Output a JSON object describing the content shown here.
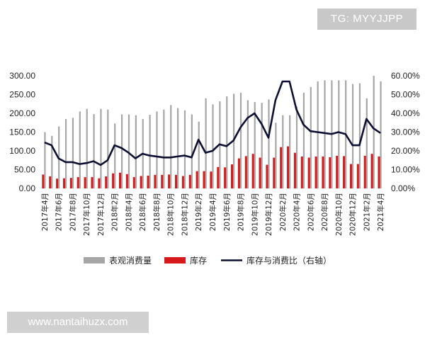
{
  "watermark": {
    "badge": "TG: MYYJJPP",
    "site": "www.nantaihuzx.com"
  },
  "colors": {
    "consumption": "#a6a6a6",
    "inventory": "#d7191c",
    "ratio": "#0d1033"
  },
  "chart_data": {
    "type": "bar",
    "x": [
      "2017年4月",
      "2017年5月",
      "2017年6月",
      "2017年7月",
      "2017年8月",
      "2017年9月",
      "2017年10月",
      "2017年11月",
      "2017年12月",
      "2018年1月",
      "2018年2月",
      "2018年3月",
      "2018年4月",
      "2018年5月",
      "2018年6月",
      "2018年7月",
      "2018年8月",
      "2018年9月",
      "2018年10月",
      "2018年11月",
      "2018年12月",
      "2019年1月",
      "2019年2月",
      "2019年3月",
      "2019年4月",
      "2019年5月",
      "2019年6月",
      "2019年7月",
      "2019年8月",
      "2019年9月",
      "2019年10月",
      "2019年11月",
      "2019年12月",
      "2020年1月",
      "2020年2月",
      "2020年3月",
      "2020年4月",
      "2020年5月",
      "2020年6月",
      "2020年7月",
      "2020年8月",
      "2020年9月",
      "2020年10月",
      "2020年11月",
      "2020年12月",
      "2021年1月",
      "2021年2月",
      "2021年3月",
      "2021年4月"
    ],
    "xtick_labels": [
      "2017年4月",
      "2017年6月",
      "2017年8月",
      "2017年10月",
      "2017年12月",
      "2018年2月",
      "2018年4月",
      "2018年6月",
      "2018年8月",
      "2018年10月",
      "2018年12月",
      "2019年2月",
      "2019年4月",
      "2019年6月",
      "2019年8月",
      "2019年10月",
      "2019年12月",
      "2020年2月",
      "2020年4月",
      "2020年6月",
      "2020年8月",
      "2020年10月",
      "2020年12月",
      "2021年2月",
      "2021年4月"
    ],
    "series": [
      {
        "name": "表观消费量",
        "type": "bar",
        "axis": "left",
        "values": [
          150,
          140,
          165,
          185,
          188,
          205,
          212,
          198,
          212,
          210,
          173,
          197,
          197,
          195,
          185,
          196,
          205,
          210,
          222,
          214,
          208,
          197,
          178,
          240,
          224,
          232,
          245,
          252,
          255,
          235,
          230,
          228,
          237,
          175,
          195,
          195,
          218,
          255,
          270,
          285,
          288,
          288,
          288,
          288,
          278,
          280,
          240,
          300,
          285
        ]
      },
      {
        "name": "库存",
        "type": "bar",
        "axis": "left",
        "values": [
          37,
          32,
          26,
          27,
          28,
          30,
          30,
          30,
          27,
          32,
          40,
          42,
          38,
          30,
          33,
          34,
          36,
          36,
          37,
          36,
          33,
          36,
          46,
          46,
          45,
          57,
          56,
          64,
          80,
          86,
          92,
          82,
          63,
          82,
          110,
          112,
          95,
          85,
          82,
          85,
          85,
          83,
          87,
          86,
          65,
          65,
          87,
          92,
          85
        ]
      },
      {
        "name": "库存与消费比（右轴）",
        "type": "line",
        "axis": "right",
        "values": [
          0.245,
          0.23,
          0.16,
          0.14,
          0.14,
          0.13,
          0.135,
          0.145,
          0.125,
          0.15,
          0.23,
          0.215,
          0.19,
          0.16,
          0.185,
          0.175,
          0.17,
          0.165,
          0.165,
          0.17,
          0.175,
          0.165,
          0.26,
          0.19,
          0.2,
          0.235,
          0.225,
          0.255,
          0.325,
          0.375,
          0.4,
          0.345,
          0.27,
          0.47,
          0.57,
          0.57,
          0.42,
          0.34,
          0.305,
          0.3,
          0.295,
          0.29,
          0.3,
          0.29,
          0.23,
          0.23,
          0.37,
          0.32,
          0.295
        ]
      }
    ],
    "y_left": {
      "ticks": [
        "0.00",
        "50.00",
        "100.00",
        "150.00",
        "200.00",
        "250.00",
        "300.00"
      ],
      "ylim": [
        0,
        300
      ]
    },
    "y_right": {
      "ticks": [
        "0.00%",
        "10.00%",
        "20.00%",
        "30.00%",
        "40.00%",
        "50.00%",
        "60.00%"
      ],
      "ylim": [
        0,
        0.6
      ]
    },
    "legend": {
      "position": "bottom",
      "labels": [
        "表观消费量",
        "库存",
        "库存与消费比（右轴）"
      ]
    },
    "grid": false
  }
}
